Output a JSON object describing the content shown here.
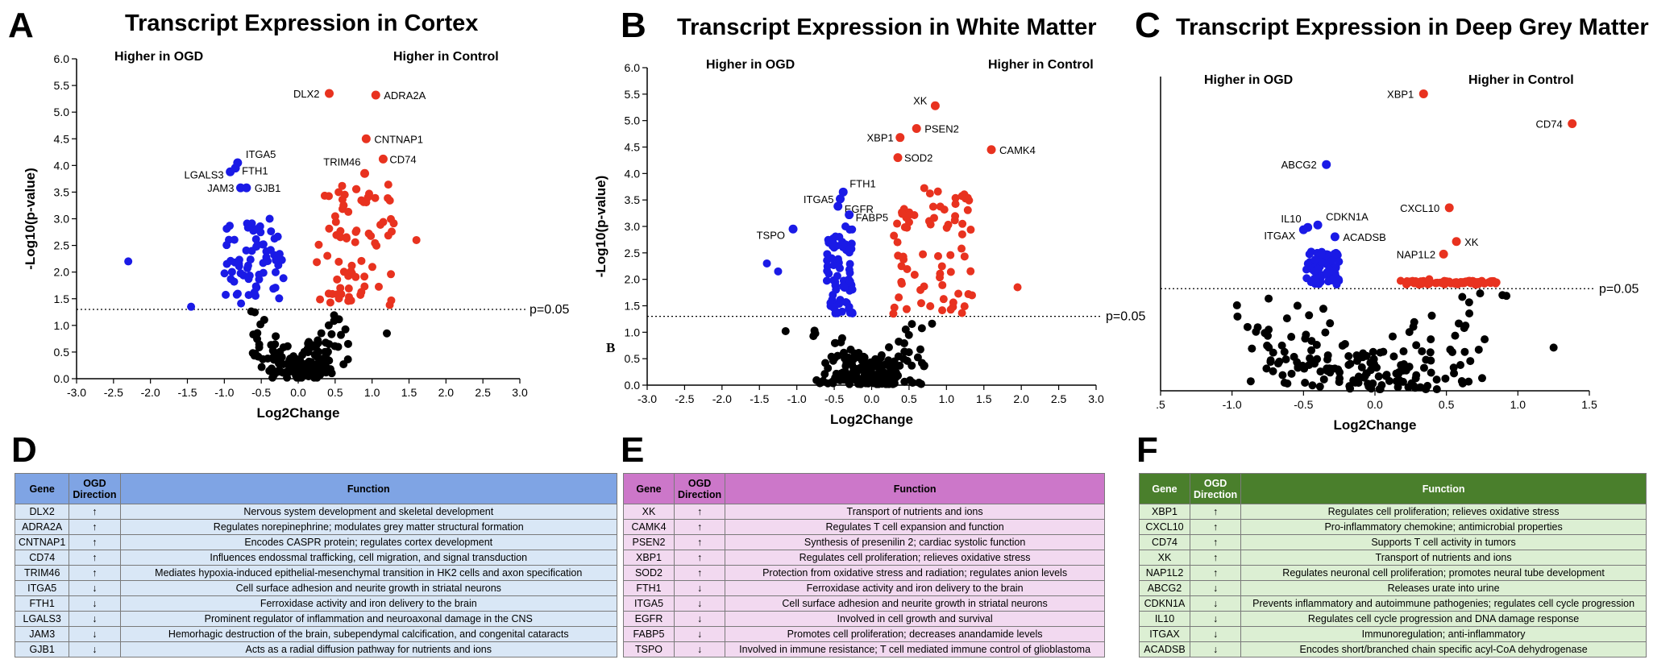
{
  "panels": {
    "A": "A",
    "B": "B",
    "C": "C",
    "D": "D",
    "E": "E",
    "F": "F",
    "stray_b": "B"
  },
  "chart_data": [
    {
      "id": "A",
      "type": "scatter",
      "title": "Transcript Expression in Cortex",
      "xlabel": "Log2Change",
      "ylabel": "-Log10(p-value)",
      "xlim": [
        -3.0,
        3.0
      ],
      "ylim": [
        0.0,
        6.0
      ],
      "xticks": [
        "-3.0",
        "-2.5",
        "-2.0",
        "-1.5",
        "-1.0",
        "-0.5",
        "0.0",
        "0.5",
        "1.0",
        "1.5",
        "2.0",
        "2.5",
        "3.0"
      ],
      "yticks": [
        "0.0",
        "0.5",
        "1.0",
        "1.5",
        "2.0",
        "2.5",
        "3.0",
        "3.5",
        "4.0",
        "4.5",
        "5.0",
        "5.5",
        "6.0"
      ],
      "threshold": {
        "y": 1.3,
        "label": "p=0.05"
      },
      "region_left": "Higher in OGD",
      "region_right": "Higher in Control",
      "labeled_points": [
        {
          "gene": "DLX2",
          "x": 0.42,
          "y": 5.35,
          "color": "#e8321f"
        },
        {
          "gene": "ADRA2A",
          "x": 1.05,
          "y": 5.32,
          "color": "#e8321f"
        },
        {
          "gene": "CNTNAP1",
          "x": 0.92,
          "y": 4.5,
          "color": "#e8321f"
        },
        {
          "gene": "CD74",
          "x": 1.15,
          "y": 4.12,
          "color": "#e8321f"
        },
        {
          "gene": "TRIM46",
          "x": 0.9,
          "y": 3.85,
          "color": "#e8321f"
        },
        {
          "gene": "ITGA5",
          "x": -0.82,
          "y": 4.05,
          "color": "#1a1ae6"
        },
        {
          "gene": "LGALS3",
          "x": -0.92,
          "y": 3.88,
          "color": "#1a1ae6"
        },
        {
          "gene": "FTH1",
          "x": -0.85,
          "y": 3.95,
          "color": "#1a1ae6"
        },
        {
          "gene": "JAM3",
          "x": -0.78,
          "y": 3.58,
          "color": "#1a1ae6"
        },
        {
          "gene": "GJB1",
          "x": -0.7,
          "y": 3.58,
          "color": "#1a1ae6"
        }
      ]
    },
    {
      "id": "B",
      "type": "scatter",
      "title": "Transcript Expression in White Matter",
      "xlabel": "Log2Change",
      "ylabel": "-Log10(p-value)",
      "xlim": [
        -3.0,
        3.0
      ],
      "ylim": [
        0.0,
        6.0
      ],
      "xticks": [
        "-3.0",
        "-2.5",
        "-2.0",
        "-1.5",
        "-1.0",
        "-0.5",
        "0.0",
        "0.5",
        "1.0",
        "1.5",
        "2.0",
        "2.5",
        "3.0"
      ],
      "yticks": [
        "0.0",
        "0.5",
        "1.0",
        "1.5",
        "2.0",
        "2.5",
        "3.0",
        "3.5",
        "4.0",
        "4.5",
        "5.0",
        "5.5",
        "6.0"
      ],
      "threshold": {
        "y": 1.3,
        "label": "p=0.05"
      },
      "region_left": "Higher in OGD",
      "region_right": "Higher in Control",
      "labeled_points": [
        {
          "gene": "XK",
          "x": 0.85,
          "y": 5.28,
          "color": "#e8321f"
        },
        {
          "gene": "PSEN2",
          "x": 0.6,
          "y": 4.85,
          "color": "#e8321f"
        },
        {
          "gene": "XBP1",
          "x": 0.38,
          "y": 4.68,
          "color": "#e8321f"
        },
        {
          "gene": "SOD2",
          "x": 0.35,
          "y": 4.3,
          "color": "#e8321f"
        },
        {
          "gene": "CAMK4",
          "x": 1.6,
          "y": 4.45,
          "color": "#e8321f"
        },
        {
          "gene": "FTH1",
          "x": -0.38,
          "y": 3.65,
          "color": "#1a1ae6"
        },
        {
          "gene": "ITGA5",
          "x": -0.42,
          "y": 3.52,
          "color": "#1a1ae6"
        },
        {
          "gene": "EGFR",
          "x": -0.45,
          "y": 3.38,
          "color": "#1a1ae6"
        },
        {
          "gene": "FABP5",
          "x": -0.3,
          "y": 3.22,
          "color": "#1a1ae6"
        },
        {
          "gene": "TSPO",
          "x": -1.05,
          "y": 2.95,
          "color": "#1a1ae6"
        }
      ]
    },
    {
      "id": "C",
      "type": "scatter",
      "title": "Transcript Expression in Deep Grey Matter",
      "xlabel": "Log2Change",
      "ylabel": "",
      "xlim": [
        -1.5,
        1.5
      ],
      "ylim": [
        0.0,
        4.0
      ],
      "xticks": [
        ".5",
        "-1.0",
        "-0.5",
        "0.0",
        "0.5",
        "1.0",
        "1.5"
      ],
      "yticks": [],
      "threshold": {
        "y": 1.3,
        "label": "p=0.05"
      },
      "region_left": "Higher in OGD",
      "region_right": "Higher in Control",
      "labeled_points": [
        {
          "gene": "XBP1",
          "x": 0.34,
          "y": 3.78,
          "color": "#e8321f"
        },
        {
          "gene": "CD74",
          "x": 1.38,
          "y": 3.4,
          "color": "#e8321f"
        },
        {
          "gene": "CXCL10",
          "x": 0.52,
          "y": 2.33,
          "color": "#e8321f"
        },
        {
          "gene": "XK",
          "x": 0.57,
          "y": 1.9,
          "color": "#e8321f"
        },
        {
          "gene": "NAP1L2",
          "x": 0.48,
          "y": 1.74,
          "color": "#e8321f"
        },
        {
          "gene": "ABCG2",
          "x": -0.34,
          "y": 2.88,
          "color": "#1a1ae6"
        },
        {
          "gene": "CDKN1A",
          "x": -0.4,
          "y": 2.11,
          "color": "#1a1ae6"
        },
        {
          "gene": "IL10",
          "x": -0.47,
          "y": 2.08,
          "color": "#1a1ae6"
        },
        {
          "gene": "ITGAX",
          "x": -0.5,
          "y": 2.05,
          "color": "#1a1ae6"
        },
        {
          "gene": "ACADSB",
          "x": -0.28,
          "y": 1.96,
          "color": "#1a1ae6"
        }
      ]
    }
  ],
  "tables": {
    "D": {
      "headers": {
        "gene": "Gene",
        "dir": "OGD Direction",
        "func": "Function"
      },
      "rows": [
        {
          "gene": "DLX2",
          "dir": "↑",
          "func": "Nervous system development and skeletal development"
        },
        {
          "gene": "ADRA2A",
          "dir": "↑",
          "func": "Regulates norepinephrine; modulates grey matter structural formation"
        },
        {
          "gene": "CNTNAP1",
          "dir": "↑",
          "func": "Encodes CASPR protein; regulates cortex development"
        },
        {
          "gene": "CD74",
          "dir": "↑",
          "func": "Influences endossmal trafficking, cell migration, and signal transduction"
        },
        {
          "gene": "TRIM46",
          "dir": "↑",
          "func": "Mediates hypoxia-induced epithelial-mesenchymal transition in HK2 cells and axon specification"
        },
        {
          "gene": "ITGA5",
          "dir": "↓",
          "func": "Cell surface adhesion and neurite growth in striatal neurons"
        },
        {
          "gene": "FTH1",
          "dir": "↓",
          "func": "Ferroxidase activity and iron delivery to the brain"
        },
        {
          "gene": "LGALS3",
          "dir": "↓",
          "func": "Prominent regulator of inflammation and neuroaxonal damage in the CNS"
        },
        {
          "gene": "JAM3",
          "dir": "↓",
          "func": "Hemorhagic destruction of the brain, subependymal calcification, and congenital cataracts"
        },
        {
          "gene": "GJB1",
          "dir": "↓",
          "func": "Acts as a radial diffusion pathway for nutrients and ions"
        }
      ]
    },
    "E": {
      "headers": {
        "gene": "Gene",
        "dir": "OGD Direction",
        "func": "Function"
      },
      "rows": [
        {
          "gene": "XK",
          "dir": "↑",
          "func": "Transport of nutrients and ions"
        },
        {
          "gene": "CAMK4",
          "dir": "↑",
          "func": "Regulates T cell expansion and function"
        },
        {
          "gene": "PSEN2",
          "dir": "↑",
          "func": "Synthesis of presenilin 2; cardiac systolic function"
        },
        {
          "gene": "XBP1",
          "dir": "↑",
          "func": "Regulates cell proliferation; relieves oxidative stress"
        },
        {
          "gene": "SOD2",
          "dir": "↑",
          "func": "Protection from oxidative stress and radiation; regulates anion levels"
        },
        {
          "gene": "FTH1",
          "dir": "↓",
          "func": "Ferroxidase activity and iron delivery to the brain"
        },
        {
          "gene": "ITGA5",
          "dir": "↓",
          "func": "Cell surface adhesion and neurite growth in striatal neurons"
        },
        {
          "gene": "EGFR",
          "dir": "↓",
          "func": "Involved in cell growth and survival"
        },
        {
          "gene": "FABP5",
          "dir": "↓",
          "func": "Promotes cell proliferation; decreases anandamide levels"
        },
        {
          "gene": "TSPO",
          "dir": "↓",
          "func": "Involved in immune resistance; T cell mediated immune control of glioblastoma"
        }
      ]
    },
    "F": {
      "headers": {
        "gene": "Gene",
        "dir": "OGD Direction",
        "func": "Function"
      },
      "rows": [
        {
          "gene": "XBP1",
          "dir": "↑",
          "func": "Regulates cell proliferation; relieves oxidative stress"
        },
        {
          "gene": "CXCL10",
          "dir": "↑",
          "func": "Pro-inflammatory chemokine; antimicrobial properties"
        },
        {
          "gene": "CD74",
          "dir": "↑",
          "func": "Supports T cell activity in tumors"
        },
        {
          "gene": "XK",
          "dir": "↑",
          "func": "Transport of nutrients and ions"
        },
        {
          "gene": "NAP1L2",
          "dir": "↑",
          "func": "Regulates neuronal cell proliferation; promotes neural tube development"
        },
        {
          "gene": "ABCG2",
          "dir": "↓",
          "func": "Releases urate into urine"
        },
        {
          "gene": "CDKN1A",
          "dir": "↓",
          "func": "Prevents inflammatory and autoimmune pathogenies; regulates cell cycle progression"
        },
        {
          "gene": "IL10",
          "dir": "↓",
          "func": "Regulates cell cycle progression and DNA damage response"
        },
        {
          "gene": "ITGAX",
          "dir": "↓",
          "func": "Immunoregulation; anti-inflammatory"
        },
        {
          "gene": "ACADSB",
          "dir": "↓",
          "func": "Encodes short/branched chain specific acyl-CoA dehydrogenase"
        }
      ]
    }
  }
}
